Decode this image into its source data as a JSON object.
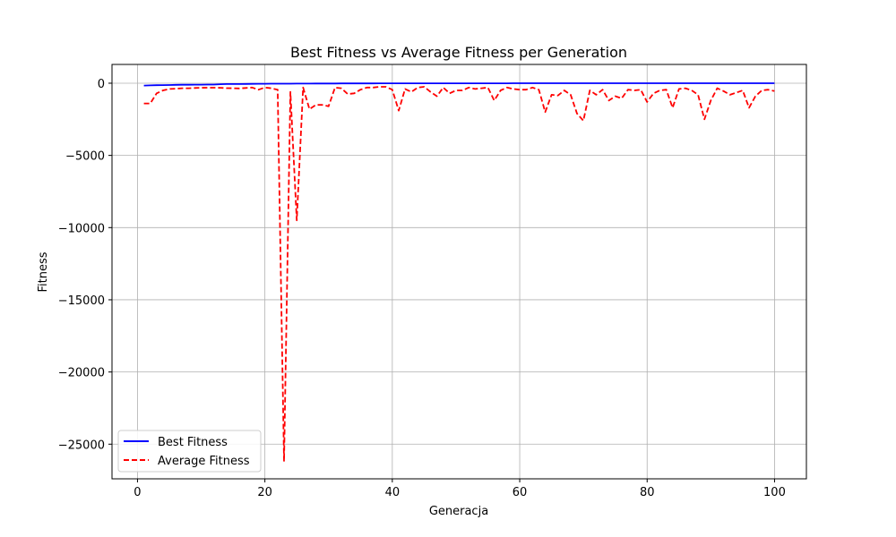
{
  "chart_data": {
    "type": "line",
    "title": "Best Fitness vs Average Fitness per Generation",
    "xlabel": "Generacja",
    "ylabel": "Fitness",
    "xlim": [
      -4,
      105
    ],
    "ylim": [
      -27400,
      1300
    ],
    "xticks": [
      0,
      20,
      40,
      60,
      80,
      100
    ],
    "yticks": [
      0,
      -5000,
      -10000,
      -15000,
      -20000,
      -25000
    ],
    "ytick_labels": [
      "0",
      "−5000",
      "−10000",
      "−15000",
      "−20000",
      "−25000"
    ],
    "grid": true,
    "legend_position": "lower-left",
    "series": [
      {
        "name": "Best Fitness",
        "color": "#0000ff",
        "style": "solid",
        "x": [
          1,
          2,
          3,
          4,
          5,
          6,
          7,
          8,
          9,
          10,
          11,
          12,
          13,
          14,
          15,
          16,
          17,
          18,
          19,
          20,
          21,
          22,
          23,
          24,
          25,
          26,
          27,
          28,
          29,
          30,
          31,
          32,
          33,
          34,
          35,
          36,
          37,
          38,
          39,
          40,
          41,
          42,
          43,
          44,
          45,
          46,
          47,
          48,
          49,
          50,
          51,
          52,
          53,
          54,
          55,
          56,
          57,
          58,
          59,
          60,
          61,
          62,
          63,
          64,
          65,
          66,
          67,
          68,
          69,
          70,
          71,
          72,
          73,
          74,
          75,
          76,
          77,
          78,
          79,
          80,
          81,
          82,
          83,
          84,
          85,
          86,
          87,
          88,
          89,
          90,
          91,
          92,
          93,
          94,
          95,
          96,
          97,
          98,
          99,
          100
        ],
        "values": [
          -160,
          -150,
          -140,
          -130,
          -125,
          -115,
          -110,
          -105,
          -100,
          -100,
          -95,
          -95,
          -70,
          -60,
          -55,
          -55,
          -50,
          -45,
          -40,
          -40,
          -35,
          -30,
          -30,
          -30,
          -28,
          -25,
          -25,
          -22,
          -20,
          -20,
          -18,
          -16,
          -15,
          -14,
          -13,
          -12,
          -12,
          -11,
          -10,
          -10,
          -10,
          -9,
          -9,
          -8,
          -8,
          -8,
          -7,
          -7,
          -7,
          -6,
          -6,
          -6,
          -6,
          -5,
          -5,
          -5,
          -5,
          -5,
          -4,
          -4,
          -4,
          -4,
          -4,
          -4,
          -4,
          -3,
          -3,
          -3,
          -3,
          -3,
          -3,
          -3,
          -3,
          -3,
          -3,
          -2,
          -2,
          -2,
          -2,
          -2,
          -2,
          -2,
          -2,
          -2,
          -2,
          -2,
          -2,
          -2,
          -2,
          -2,
          -2,
          -2,
          -2,
          -1,
          -1,
          -1,
          -1,
          -1,
          -1,
          -1
        ]
      },
      {
        "name": "Average Fitness",
        "color": "#ff0000",
        "style": "dashed",
        "x": [
          1,
          2,
          3,
          4,
          5,
          6,
          7,
          8,
          9,
          10,
          11,
          12,
          13,
          14,
          15,
          16,
          17,
          18,
          19,
          20,
          21,
          22,
          23,
          24,
          25,
          26,
          27,
          28,
          29,
          30,
          31,
          32,
          33,
          34,
          35,
          36,
          37,
          38,
          39,
          40,
          41,
          42,
          43,
          44,
          45,
          46,
          47,
          48,
          49,
          50,
          51,
          52,
          53,
          54,
          55,
          56,
          57,
          58,
          59,
          60,
          61,
          62,
          63,
          64,
          65,
          66,
          67,
          68,
          69,
          70,
          71,
          72,
          73,
          74,
          75,
          76,
          77,
          78,
          79,
          80,
          81,
          82,
          83,
          84,
          85,
          86,
          87,
          88,
          89,
          90,
          91,
          92,
          93,
          94,
          95,
          96,
          97,
          98,
          99,
          100
        ],
        "values": [
          -1400,
          -1400,
          -700,
          -500,
          -400,
          -380,
          -350,
          -350,
          -330,
          -320,
          -310,
          -310,
          -320,
          -340,
          -350,
          -360,
          -330,
          -300,
          -450,
          -300,
          -350,
          -450,
          -26200,
          -600,
          -9500,
          -300,
          -1800,
          -1500,
          -1500,
          -1600,
          -300,
          -350,
          -750,
          -700,
          -450,
          -300,
          -300,
          -250,
          -250,
          -450,
          -1900,
          -400,
          -600,
          -300,
          -250,
          -600,
          -900,
          -300,
          -700,
          -500,
          -500,
          -300,
          -400,
          -350,
          -300,
          -1200,
          -500,
          -300,
          -400,
          -450,
          -450,
          -300,
          -450,
          -2000,
          -800,
          -850,
          -500,
          -800,
          -2100,
          -2600,
          -500,
          -800,
          -450,
          -1200,
          -900,
          -1050,
          -450,
          -500,
          -450,
          -1300,
          -700,
          -500,
          -450,
          -1700,
          -400,
          -350,
          -500,
          -800,
          -2500,
          -1200,
          -350,
          -550,
          -800,
          -650,
          -500,
          -1700,
          -900,
          -500,
          -450,
          -550
        ]
      }
    ]
  }
}
